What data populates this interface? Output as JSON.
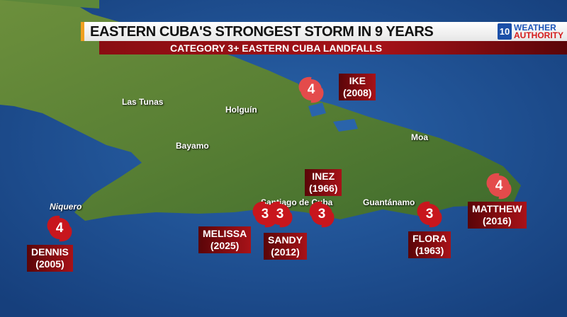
{
  "header": {
    "title": "EASTERN CUBA'S STRONGEST STORM IN 9 YEARS",
    "subtitle": "CATEGORY 3+ EASTERN CUBA LANDFALLS",
    "logo": {
      "box": "10",
      "line1": "WEATHER",
      "line2": "AUTHORITY"
    }
  },
  "cities": [
    {
      "name": "Las Tunas"
    },
    {
      "name": "Holguín"
    },
    {
      "name": "Bayamo"
    },
    {
      "name": "Moa"
    },
    {
      "name": "Niquero"
    },
    {
      "name": "Santiago de Cuba"
    },
    {
      "name": "Guantánamo"
    }
  ],
  "storms": [
    {
      "name": "IKE",
      "year": "(2008)",
      "category": "4"
    },
    {
      "name": "DENNIS",
      "year": "(2005)",
      "category": "4"
    },
    {
      "name": "MELISSA",
      "year": "(2025)",
      "category": "3"
    },
    {
      "name": "SANDY",
      "year": "(2012)",
      "category": "3"
    },
    {
      "name": "INEZ",
      "year": "(1966)",
      "category": "3"
    },
    {
      "name": "FLORA",
      "year": "(1963)",
      "category": "3"
    },
    {
      "name": "MATTHEW",
      "year": "(2016)",
      "category": "4"
    }
  ],
  "colors": {
    "ocean": "#1d4f93",
    "land": "#5f8a3a",
    "storm_red": "#c8161d",
    "label_red": "#a81218"
  }
}
